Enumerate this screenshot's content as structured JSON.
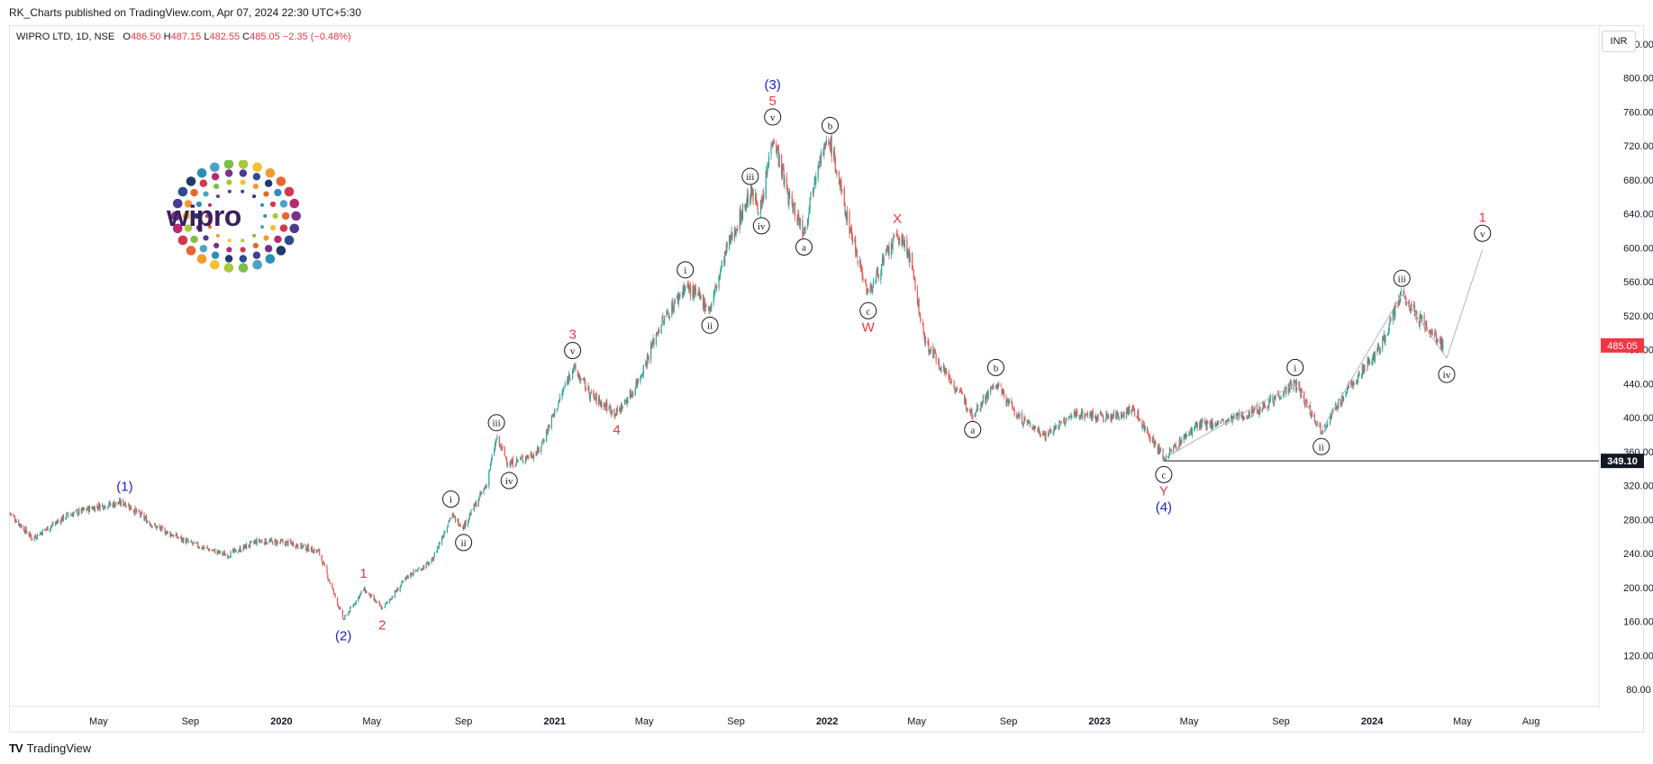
{
  "publisher": "RK_Charts published on TradingView.com, Apr 07, 2024 22:30 UTC+5:30",
  "legend": {
    "symbol": "WIPRO LTD, 1D, NSE",
    "open_label": "O",
    "open": "486.50",
    "high_label": "H",
    "high": "487.15",
    "low_label": "L",
    "low": "482.55",
    "close_label": "C",
    "close": "485.05",
    "change": "−2.35 (−0.48%)"
  },
  "currency": "INR",
  "logo": {
    "text": "wipro"
  },
  "footer": {
    "brand": "TradingView"
  },
  "colors": {
    "up": "#26a69a",
    "down": "#ef5350",
    "last_price_bg": "#f23645",
    "level_bg": "#131722",
    "wave_red": "#f23645",
    "wave_blue": "#1e22c8"
  },
  "chart_data": {
    "type": "candlestick",
    "symbol": "WIPRO LTD",
    "interval": "1D",
    "exchange": "NSE",
    "ylim": [
      60,
      860
    ],
    "y_ticks": [
      "840.00",
      "800.00",
      "760.00",
      "720.00",
      "680.00",
      "640.00",
      "600.00",
      "560.00",
      "520.00",
      "480.00",
      "440.00",
      "400.00",
      "360.00",
      "320.00",
      "280.00",
      "240.00",
      "200.00",
      "160.00",
      "120.00",
      "80.00"
    ],
    "x_ticks": [
      {
        "label": "May",
        "date": "2019-05-01"
      },
      {
        "label": "Sep",
        "date": "2019-09-01"
      },
      {
        "label": "2020",
        "date": "2020-01-01"
      },
      {
        "label": "May",
        "date": "2020-05-01"
      },
      {
        "label": "Sep",
        "date": "2020-09-01"
      },
      {
        "label": "2021",
        "date": "2021-01-01"
      },
      {
        "label": "May",
        "date": "2021-05-01"
      },
      {
        "label": "Sep",
        "date": "2021-09-01"
      },
      {
        "label": "2022",
        "date": "2022-01-01"
      },
      {
        "label": "May",
        "date": "2022-05-01"
      },
      {
        "label": "Sep",
        "date": "2022-09-01"
      },
      {
        "label": "2023",
        "date": "2023-01-01"
      },
      {
        "label": "May",
        "date": "2023-05-01"
      },
      {
        "label": "Sep",
        "date": "2023-09-01"
      },
      {
        "label": "2024",
        "date": "2024-01-01"
      },
      {
        "label": "May",
        "date": "2024-05-01"
      },
      {
        "label": "Aug",
        "date": "2024-08-01"
      }
    ],
    "last_price": "485.05",
    "horizontal_level": "349.10",
    "price_path": [
      {
        "date": "2019-01-02",
        "price": 288
      },
      {
        "date": "2019-02-01",
        "price": 258
      },
      {
        "date": "2019-03-20",
        "price": 285
      },
      {
        "date": "2019-05-01",
        "price": 296
      },
      {
        "date": "2019-06-05",
        "price": 300
      },
      {
        "date": "2019-07-15",
        "price": 272
      },
      {
        "date": "2019-09-01",
        "price": 252
      },
      {
        "date": "2019-10-20",
        "price": 238
      },
      {
        "date": "2019-12-01",
        "price": 255
      },
      {
        "date": "2020-01-15",
        "price": 252
      },
      {
        "date": "2020-02-20",
        "price": 242
      },
      {
        "date": "2020-03-24",
        "price": 162
      },
      {
        "date": "2020-04-20",
        "price": 198
      },
      {
        "date": "2020-05-15",
        "price": 175
      },
      {
        "date": "2020-06-20",
        "price": 215
      },
      {
        "date": "2020-07-20",
        "price": 230
      },
      {
        "date": "2020-08-15",
        "price": 285
      },
      {
        "date": "2020-09-01",
        "price": 272
      },
      {
        "date": "2020-10-01",
        "price": 320
      },
      {
        "date": "2020-10-15",
        "price": 375
      },
      {
        "date": "2020-11-01",
        "price": 345
      },
      {
        "date": "2020-12-10",
        "price": 360
      },
      {
        "date": "2021-01-05",
        "price": 415
      },
      {
        "date": "2021-01-25",
        "price": 460
      },
      {
        "date": "2021-02-20",
        "price": 425
      },
      {
        "date": "2021-03-25",
        "price": 405
      },
      {
        "date": "2021-04-15",
        "price": 430
      },
      {
        "date": "2021-05-01",
        "price": 460
      },
      {
        "date": "2021-05-20",
        "price": 505
      },
      {
        "date": "2021-06-25",
        "price": 555
      },
      {
        "date": "2021-07-15",
        "price": 540
      },
      {
        "date": "2021-07-28",
        "price": 528
      },
      {
        "date": "2021-08-20",
        "price": 600
      },
      {
        "date": "2021-09-20",
        "price": 665
      },
      {
        "date": "2021-10-05",
        "price": 645
      },
      {
        "date": "2021-10-20",
        "price": 735
      },
      {
        "date": "2021-11-10",
        "price": 660
      },
      {
        "date": "2021-12-01",
        "price": 620
      },
      {
        "date": "2021-12-20",
        "price": 705
      },
      {
        "date": "2022-01-05",
        "price": 725
      },
      {
        "date": "2022-01-25",
        "price": 645
      },
      {
        "date": "2022-02-25",
        "price": 545
      },
      {
        "date": "2022-03-15",
        "price": 580
      },
      {
        "date": "2022-04-05",
        "price": 615
      },
      {
        "date": "2022-04-20",
        "price": 595
      },
      {
        "date": "2022-05-12",
        "price": 490
      },
      {
        "date": "2022-06-15",
        "price": 445
      },
      {
        "date": "2022-07-15",
        "price": 405
      },
      {
        "date": "2022-08-15",
        "price": 440
      },
      {
        "date": "2022-09-15",
        "price": 400
      },
      {
        "date": "2022-10-20",
        "price": 380
      },
      {
        "date": "2022-12-01",
        "price": 405
      },
      {
        "date": "2023-01-15",
        "price": 400
      },
      {
        "date": "2023-02-15",
        "price": 410
      },
      {
        "date": "2023-03-28",
        "price": 352
      },
      {
        "date": "2023-05-10",
        "price": 390
      },
      {
        "date": "2023-06-20",
        "price": 395
      },
      {
        "date": "2023-08-01",
        "price": 410
      },
      {
        "date": "2023-09-20",
        "price": 440
      },
      {
        "date": "2023-10-25",
        "price": 385
      },
      {
        "date": "2023-12-05",
        "price": 440
      },
      {
        "date": "2024-01-10",
        "price": 480
      },
      {
        "date": "2024-02-10",
        "price": 545
      },
      {
        "date": "2024-03-10",
        "price": 510
      },
      {
        "date": "2024-04-05",
        "price": 485
      }
    ],
    "projection": [
      {
        "date": "2024-04-10",
        "price": 470
      },
      {
        "date": "2024-05-28",
        "price": 598
      }
    ],
    "annotations": [
      {
        "text": "(1)",
        "date": "2019-06-05",
        "price": 300,
        "color": "blue",
        "pos": "above"
      },
      {
        "text": "(2)",
        "date": "2020-03-24",
        "price": 162,
        "color": "blue",
        "pos": "below"
      },
      {
        "text": "(3)",
        "date": "2021-10-20",
        "price": 735,
        "color": "blue",
        "pos": "above",
        "stack": 3
      },
      {
        "text": "5",
        "date": "2021-10-20",
        "price": 735,
        "color": "red",
        "pos": "above",
        "stack": 2
      },
      {
        "text": "v",
        "date": "2021-10-20",
        "price": 735,
        "color": "black",
        "pos": "above",
        "stack": 1,
        "circle": true
      },
      {
        "text": "(4)",
        "date": "2023-03-28",
        "price": 352,
        "color": "blue",
        "pos": "below",
        "stack": 3
      },
      {
        "text": "Y",
        "date": "2023-03-28",
        "price": 352,
        "color": "red",
        "pos": "below",
        "stack": 2
      },
      {
        "text": "c",
        "date": "2023-03-28",
        "price": 352,
        "color": "black",
        "pos": "below",
        "stack": 1,
        "circle": true
      },
      {
        "text": "1",
        "date": "2020-04-20",
        "price": 198,
        "color": "red",
        "pos": "above"
      },
      {
        "text": "2",
        "date": "2020-05-15",
        "price": 175,
        "color": "red",
        "pos": "below"
      },
      {
        "text": "i",
        "date": "2020-08-15",
        "price": 285,
        "color": "black",
        "pos": "above",
        "circle": true
      },
      {
        "text": "ii",
        "date": "2020-09-01",
        "price": 272,
        "color": "black",
        "pos": "below",
        "circle": true
      },
      {
        "text": "iii",
        "date": "2020-10-15",
        "price": 375,
        "color": "black",
        "pos": "above",
        "circle": true
      },
      {
        "text": "iv",
        "date": "2020-11-01",
        "price": 345,
        "color": "black",
        "pos": "below",
        "circle": true
      },
      {
        "text": "3",
        "date": "2021-01-25",
        "price": 460,
        "color": "red",
        "pos": "above",
        "stack": 2
      },
      {
        "text": "v",
        "date": "2021-01-25",
        "price": 460,
        "color": "black",
        "pos": "above",
        "stack": 1,
        "circle": true
      },
      {
        "text": "4",
        "date": "2021-03-25",
        "price": 405,
        "color": "red",
        "pos": "below"
      },
      {
        "text": "i",
        "date": "2021-06-25",
        "price": 555,
        "color": "black",
        "pos": "above",
        "circle": true
      },
      {
        "text": "ii",
        "date": "2021-07-28",
        "price": 528,
        "color": "black",
        "pos": "below",
        "circle": true
      },
      {
        "text": "iii",
        "date": "2021-09-20",
        "price": 665,
        "color": "black",
        "pos": "above",
        "circle": true
      },
      {
        "text": "iv",
        "date": "2021-10-05",
        "price": 645,
        "color": "black",
        "pos": "below",
        "circle": true
      },
      {
        "text": "a",
        "date": "2021-12-01",
        "price": 620,
        "color": "black",
        "pos": "below",
        "circle": true
      },
      {
        "text": "b",
        "date": "2022-01-05",
        "price": 725,
        "color": "black",
        "pos": "above",
        "circle": true
      },
      {
        "text": "c",
        "date": "2022-02-25",
        "price": 545,
        "color": "black",
        "pos": "below",
        "circle": true
      },
      {
        "text": "W",
        "date": "2022-02-25",
        "price": 545,
        "color": "red",
        "pos": "below",
        "stack": 2
      },
      {
        "text": "X",
        "date": "2022-04-05",
        "price": 615,
        "color": "red",
        "pos": "above"
      },
      {
        "text": "a",
        "date": "2022-07-15",
        "price": 405,
        "color": "black",
        "pos": "below",
        "circle": true
      },
      {
        "text": "b",
        "date": "2022-08-15",
        "price": 440,
        "color": "black",
        "pos": "above",
        "circle": true
      },
      {
        "text": "i",
        "date": "2023-09-20",
        "price": 440,
        "color": "black",
        "pos": "above",
        "circle": true
      },
      {
        "text": "ii",
        "date": "2023-10-25",
        "price": 385,
        "color": "black",
        "pos": "below",
        "circle": true
      },
      {
        "text": "iii",
        "date": "2024-02-10",
        "price": 545,
        "color": "black",
        "pos": "above",
        "circle": true
      },
      {
        "text": "iv",
        "date": "2024-04-10",
        "price": 470,
        "color": "black",
        "pos": "below",
        "circle": true
      },
      {
        "text": "1",
        "date": "2024-05-28",
        "price": 598,
        "color": "red",
        "pos": "above",
        "stack": 2
      },
      {
        "text": "v",
        "date": "2024-05-28",
        "price": 598,
        "color": "black",
        "pos": "above",
        "stack": 1,
        "circle": true
      }
    ]
  }
}
